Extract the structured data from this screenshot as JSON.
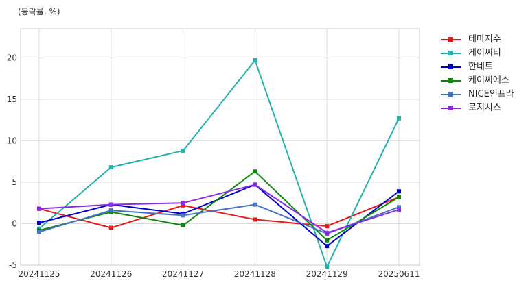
{
  "chart_data": {
    "type": "line",
    "ylabel": "(등락률, %)",
    "categories": [
      "20241125",
      "20241126",
      "20241127",
      "20241128",
      "20241129",
      "20250611"
    ],
    "ylim": [
      -5,
      23.5
    ],
    "yticks": [
      -5,
      0,
      5,
      10,
      15,
      20
    ],
    "grid": true,
    "legend_position": "right",
    "series": [
      {
        "name": "테마지수",
        "color": "#e31a1c",
        "values": [
          1.8,
          -0.5,
          2.2,
          0.5,
          -0.3,
          3.2
        ]
      },
      {
        "name": "케이씨티",
        "color": "#20b2aa",
        "values": [
          -0.6,
          6.8,
          8.8,
          19.7,
          -5.2,
          12.7
        ]
      },
      {
        "name": "한네트",
        "color": "#0000cd",
        "values": [
          0.1,
          2.3,
          1.2,
          4.7,
          -2.7,
          3.9
        ]
      },
      {
        "name": "케이씨에스",
        "color": "#0a8a0a",
        "values": [
          -0.8,
          1.4,
          -0.2,
          6.3,
          -2.0,
          3.2
        ]
      },
      {
        "name": "NICE인프라",
        "color": "#4472c4",
        "values": [
          -1.0,
          1.6,
          1.0,
          2.3,
          -1.2,
          2.0
        ]
      },
      {
        "name": "로지시스",
        "color": "#8a2be2",
        "values": [
          1.8,
          2.3,
          2.5,
          4.7,
          -1.1,
          1.7
        ]
      }
    ]
  }
}
